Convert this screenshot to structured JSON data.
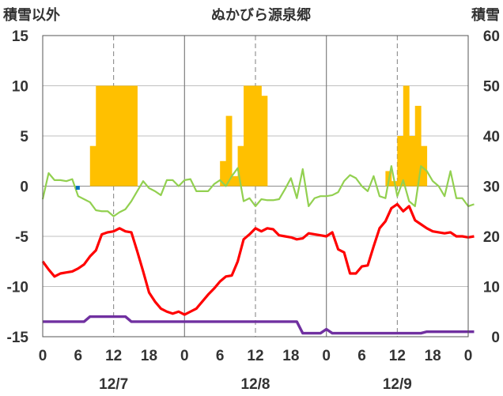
{
  "chart_data": {
    "type": "bar+line",
    "title": "ぬかびら源泉郷",
    "left_axis_label": "積雪以外",
    "right_axis_label": "積雪",
    "ylim_left": [
      -15,
      15
    ],
    "ylim_right": [
      0,
      60
    ],
    "left_ticks": [
      "15",
      "10",
      "5",
      "0",
      "-5",
      "-10",
      "-15"
    ],
    "right_ticks": [
      "60",
      "50",
      "40",
      "30",
      "20",
      "10",
      "0"
    ],
    "hour_ticks": [
      "0",
      "6",
      "12",
      "18",
      "0",
      "6",
      "12",
      "18",
      "0",
      "6",
      "12",
      "18",
      "0"
    ],
    "dates": [
      "12/7",
      "12/8",
      "12/9"
    ],
    "grid": true,
    "colors": {
      "precipitation": "#ffc000",
      "temperature": "#ff0000",
      "wind": "#92d050",
      "snow_depth": "#7030a0",
      "marker": "#0070c0"
    },
    "precipitation": {
      "hours": [
        8,
        9,
        10,
        11,
        12,
        13,
        14,
        15,
        30,
        31,
        32,
        33,
        34,
        35,
        36,
        37,
        58,
        59,
        60,
        61,
        62,
        63,
        64
      ],
      "values": [
        4,
        10,
        10,
        10,
        10,
        10,
        10,
        10,
        2.5,
        7,
        1,
        4,
        10,
        10,
        10,
        9,
        1.5,
        0.5,
        5,
        10,
        5,
        8,
        4
      ]
    },
    "temperature": [
      -7.5,
      -8.3,
      -9.0,
      -8.7,
      -8.6,
      -8.5,
      -8.2,
      -7.8,
      -7.0,
      -6.4,
      -4.8,
      -4.6,
      -4.5,
      -4.2,
      -4.5,
      -4.6,
      -6.5,
      -8.5,
      -10.6,
      -11.5,
      -12.2,
      -12.5,
      -12.7,
      -12.5,
      -12.8,
      -12.5,
      -12.2,
      -11.5,
      -10.8,
      -10.2,
      -9.5,
      -9.0,
      -8.9,
      -7.5,
      -5.3,
      -4.8,
      -4.2,
      -4.5,
      -4.2,
      -4.3,
      -4.9,
      -5.0,
      -5.1,
      -5.3,
      -5.2,
      -4.7,
      -4.8,
      -4.9,
      -5.0,
      -4.6,
      -6.3,
      -6.6,
      -8.7,
      -8.7,
      -8.0,
      -7.9,
      -6.0,
      -4.2,
      -3.5,
      -2.2,
      -1.8,
      -2.5,
      -2.0,
      -3.4,
      -3.8,
      -4.2,
      -4.5,
      -4.6,
      -4.7,
      -4.6,
      -5.0,
      -5.0,
      -5.1,
      -5.0
    ],
    "wind": [
      -1.3,
      1.3,
      0.6,
      0.6,
      0.5,
      0.7,
      -1.0,
      -1.3,
      -1.6,
      -2.4,
      -2.5,
      -2.5,
      -3.0,
      -2.6,
      -2.3,
      -1.5,
      -0.5,
      0.5,
      -0.2,
      -0.5,
      -0.9,
      0.6,
      0.6,
      0.0,
      0.6,
      0.7,
      -0.5,
      -0.5,
      -0.5,
      0.2,
      0.6,
      0.0,
      1.0,
      1.8,
      -1.5,
      -1.2,
      -2.0,
      -1.3,
      -1.4,
      -1.4,
      -1.3,
      -0.3,
      0.8,
      -1.2,
      1.7,
      -2.0,
      -1.2,
      -1.0,
      -1.0,
      -0.9,
      -0.6,
      0.5,
      1.1,
      0.8,
      0.0,
      -0.5,
      1.0,
      -1.0,
      -1.2,
      2.0,
      -1.0,
      0.6,
      -1.5,
      -2.0,
      2.0,
      1.5,
      0.5,
      0.0,
      -1.0,
      1.5,
      -1.2,
      -1.2,
      -2.0,
      -1.8
    ],
    "snow_depth": [
      3,
      3,
      3,
      3,
      3,
      3,
      3,
      3,
      4,
      4,
      4,
      4,
      4,
      4,
      4,
      3,
      3,
      3,
      3,
      3,
      3,
      3,
      3,
      3,
      3,
      3,
      3,
      3,
      3,
      3,
      3,
      3,
      3,
      3,
      3,
      3,
      3,
      3,
      3,
      3,
      3,
      3,
      3,
      3,
      0.7,
      0.7,
      0.7,
      0.7,
      0.7,
      0.7,
      0.7,
      0.7,
      0.7,
      0.7,
      0.7,
      0.7,
      0.7,
      0.7,
      0.7,
      0.7,
      0.7,
      0.7,
      0.7,
      0.7,
      0.7,
      1.0,
      1.0,
      1.0,
      1.0,
      1.0,
      1.0,
      1.0,
      1.0,
      1.0
    ],
    "snow_depth_alt": {
      "hour": 48,
      "value": 1.5
    },
    "marker": {
      "hour": 6,
      "value": -0.2
    }
  }
}
